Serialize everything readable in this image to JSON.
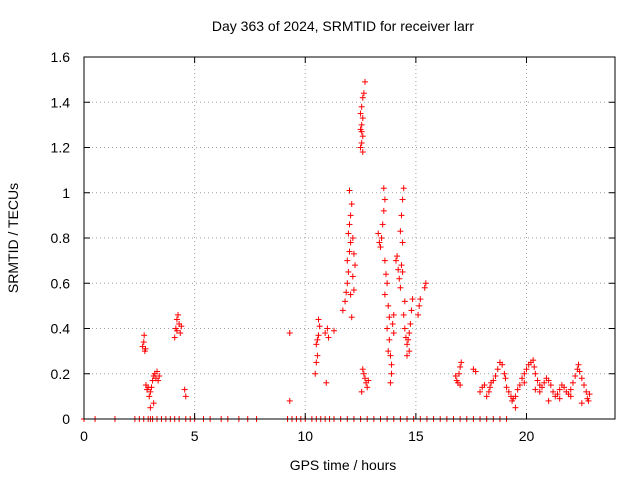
{
  "chart_data": {
    "type": "scatter",
    "title": "Day 363 of 2024, SRMTID for receiver larr",
    "xlabel": "GPS time / hours",
    "ylabel": "SRMTID / TECUs",
    "xlim": [
      0,
      24
    ],
    "ylim": [
      0,
      1.6
    ],
    "x_ticks": [
      0,
      5,
      10,
      15,
      20
    ],
    "x_tick_labels": [
      "0",
      "5",
      "10",
      "15",
      "20"
    ],
    "y_ticks": [
      0,
      0.2,
      0.4,
      0.6,
      0.8,
      1.0,
      1.2,
      1.4,
      1.6
    ],
    "y_tick_labels": [
      "0",
      "0.2",
      "0.4",
      "0.6",
      "0.8",
      "1",
      "1.2",
      "1.4",
      "1.6"
    ],
    "grid": true,
    "marker": "plus",
    "color": "#ff0000",
    "series": [
      {
        "name": "SRMTID",
        "points": [
          [
            0.0,
            0
          ],
          [
            0.5,
            0
          ],
          [
            1.4,
            0
          ],
          [
            2.3,
            0
          ],
          [
            2.5,
            0
          ],
          [
            2.7,
            0
          ],
          [
            2.9,
            0
          ],
          [
            3.0,
            0
          ],
          [
            3.1,
            0
          ],
          [
            3.3,
            0
          ],
          [
            3.5,
            0
          ],
          [
            3.7,
            0
          ],
          [
            3.9,
            0
          ],
          [
            4.1,
            0
          ],
          [
            4.3,
            0
          ],
          [
            4.6,
            0
          ],
          [
            4.8,
            0
          ],
          [
            5.0,
            0
          ],
          [
            5.4,
            0
          ],
          [
            5.7,
            0
          ],
          [
            6.2,
            0
          ],
          [
            6.5,
            0
          ],
          [
            7.0,
            0
          ],
          [
            7.4,
            0
          ],
          [
            7.8,
            0
          ],
          [
            9.2,
            0
          ],
          [
            9.4,
            0
          ],
          [
            9.6,
            0
          ],
          [
            9.8,
            0
          ],
          [
            10.0,
            0
          ],
          [
            10.3,
            0
          ],
          [
            10.5,
            0
          ],
          [
            10.7,
            0
          ],
          [
            10.9,
            0
          ],
          [
            11.1,
            0
          ],
          [
            11.3,
            0
          ],
          [
            11.6,
            0
          ],
          [
            11.9,
            0
          ],
          [
            12.2,
            0
          ],
          [
            12.5,
            0
          ],
          [
            12.8,
            0
          ],
          [
            13.1,
            0
          ],
          [
            13.4,
            0
          ],
          [
            13.7,
            0
          ],
          [
            14.0,
            0
          ],
          [
            14.3,
            0
          ],
          [
            14.6,
            0
          ],
          [
            14.9,
            0
          ],
          [
            15.2,
            0
          ],
          [
            15.5,
            0
          ],
          [
            15.8,
            0
          ],
          [
            16.1,
            0
          ],
          [
            16.4,
            0
          ],
          [
            16.7,
            0
          ],
          [
            17.0,
            0
          ],
          [
            17.3,
            0
          ],
          [
            17.6,
            0
          ],
          [
            17.9,
            0
          ],
          [
            18.2,
            0
          ],
          [
            18.5,
            0
          ],
          [
            18.8,
            0
          ],
          [
            19.1,
            0
          ],
          [
            2.65,
            0.32
          ],
          [
            2.7,
            0.34
          ],
          [
            2.72,
            0.37
          ],
          [
            2.75,
            0.3
          ],
          [
            2.78,
            0.31
          ],
          [
            2.8,
            0.15
          ],
          [
            2.85,
            0.13
          ],
          [
            2.9,
            0.14
          ],
          [
            2.95,
            0.1
          ],
          [
            3.0,
            0.12
          ],
          [
            3.05,
            0.14
          ],
          [
            3.1,
            0.17
          ],
          [
            3.15,
            0.19
          ],
          [
            3.2,
            0.2
          ],
          [
            3.25,
            0.18
          ],
          [
            3.3,
            0.21
          ],
          [
            3.35,
            0.17
          ],
          [
            3.4,
            0.19
          ],
          [
            3.15,
            0.07
          ],
          [
            3.0,
            0.05
          ],
          [
            4.1,
            0.36
          ],
          [
            4.15,
            0.4
          ],
          [
            4.2,
            0.44
          ],
          [
            4.25,
            0.46
          ],
          [
            4.3,
            0.42
          ],
          [
            4.35,
            0.38
          ],
          [
            4.4,
            0.41
          ],
          [
            4.2,
            0.39
          ],
          [
            4.55,
            0.13
          ],
          [
            4.6,
            0.1
          ],
          [
            9.3,
            0.38
          ],
          [
            9.3,
            0.08
          ],
          [
            10.45,
            0.2
          ],
          [
            10.5,
            0.25
          ],
          [
            10.55,
            0.28
          ],
          [
            10.5,
            0.33
          ],
          [
            10.55,
            0.35
          ],
          [
            10.6,
            0.37
          ],
          [
            10.65,
            0.41
          ],
          [
            10.6,
            0.44
          ],
          [
            10.9,
            0.38
          ],
          [
            11.0,
            0.4
          ],
          [
            11.05,
            0.36
          ],
          [
            11.3,
            0.39
          ],
          [
            10.95,
            0.16
          ],
          [
            11.7,
            0.48
          ],
          [
            11.8,
            0.52
          ],
          [
            11.85,
            0.56
          ],
          [
            11.9,
            0.6
          ],
          [
            11.95,
            0.65
          ],
          [
            11.9,
            0.7
          ],
          [
            12.0,
            0.74
          ],
          [
            12.05,
            0.78
          ],
          [
            11.95,
            0.82
          ],
          [
            12.0,
            0.86
          ],
          [
            12.1,
            0.95
          ],
          [
            12.0,
            1.01
          ],
          [
            12.05,
            0.9
          ],
          [
            12.15,
            0.8
          ],
          [
            12.2,
            0.73
          ],
          [
            12.25,
            0.68
          ],
          [
            12.15,
            0.63
          ],
          [
            12.2,
            0.57
          ],
          [
            12.1,
            0.45
          ],
          [
            12.05,
            0.55
          ],
          [
            12.5,
            1.2
          ],
          [
            12.55,
            1.22
          ],
          [
            12.6,
            1.25
          ],
          [
            12.5,
            1.28
          ],
          [
            12.55,
            1.3
          ],
          [
            12.6,
            1.33
          ],
          [
            12.5,
            1.35
          ],
          [
            12.55,
            1.38
          ],
          [
            12.6,
            1.42
          ],
          [
            12.65,
            1.44
          ],
          [
            12.7,
            1.49
          ],
          [
            12.6,
            1.18
          ],
          [
            12.55,
            1.27
          ],
          [
            12.6,
            0.22
          ],
          [
            12.65,
            0.2
          ],
          [
            12.7,
            0.18
          ],
          [
            12.75,
            0.16
          ],
          [
            12.8,
            0.14
          ],
          [
            12.85,
            0.17
          ],
          [
            12.55,
            0.12
          ],
          [
            13.3,
            0.82
          ],
          [
            13.35,
            0.78
          ],
          [
            13.4,
            0.76
          ],
          [
            13.45,
            0.8
          ],
          [
            13.5,
            0.86
          ],
          [
            13.55,
            0.92
          ],
          [
            13.6,
            0.97
          ],
          [
            13.55,
            1.02
          ],
          [
            13.6,
            0.7
          ],
          [
            13.65,
            0.64
          ],
          [
            13.7,
            0.6
          ],
          [
            13.6,
            0.55
          ],
          [
            13.75,
            0.5
          ],
          [
            13.8,
            0.45
          ],
          [
            13.7,
            0.4
          ],
          [
            13.8,
            0.35
          ],
          [
            13.75,
            0.3
          ],
          [
            13.85,
            0.28
          ],
          [
            13.9,
            0.24
          ],
          [
            13.95,
            0.42
          ],
          [
            14.0,
            0.46
          ],
          [
            13.9,
            0.2
          ],
          [
            13.85,
            0.16
          ],
          [
            14.0,
            0.38
          ],
          [
            14.1,
            0.7
          ],
          [
            14.15,
            0.72
          ],
          [
            14.2,
            0.66
          ],
          [
            14.25,
            0.62
          ],
          [
            14.3,
            0.58
          ],
          [
            14.35,
            0.68
          ],
          [
            14.4,
            0.78
          ],
          [
            14.35,
            0.9
          ],
          [
            14.4,
            0.97
          ],
          [
            14.45,
            1.02
          ],
          [
            14.3,
            0.83
          ],
          [
            14.4,
            0.65
          ],
          [
            14.5,
            0.52
          ],
          [
            14.45,
            0.46
          ],
          [
            14.5,
            0.4
          ],
          [
            14.55,
            0.36
          ],
          [
            14.6,
            0.33
          ],
          [
            14.65,
            0.35
          ],
          [
            14.7,
            0.38
          ],
          [
            14.75,
            0.42
          ],
          [
            14.8,
            0.48
          ],
          [
            14.85,
            0.53
          ],
          [
            14.7,
            0.3
          ],
          [
            14.6,
            0.28
          ],
          [
            15.1,
            0.46
          ],
          [
            15.15,
            0.5
          ],
          [
            15.2,
            0.53
          ],
          [
            15.4,
            0.58
          ],
          [
            15.45,
            0.6
          ],
          [
            16.8,
            0.19
          ],
          [
            16.85,
            0.17
          ],
          [
            16.9,
            0.16
          ],
          [
            16.95,
            0.2
          ],
          [
            17.0,
            0.23
          ],
          [
            17.05,
            0.25
          ],
          [
            17.0,
            0.15
          ],
          [
            17.6,
            0.22
          ],
          [
            17.7,
            0.21
          ],
          [
            17.9,
            0.12
          ],
          [
            18.0,
            0.14
          ],
          [
            18.1,
            0.15
          ],
          [
            18.2,
            0.1
          ],
          [
            18.3,
            0.12
          ],
          [
            18.35,
            0.14
          ],
          [
            18.4,
            0.16
          ],
          [
            18.5,
            0.17
          ],
          [
            18.6,
            0.19
          ],
          [
            18.7,
            0.22
          ],
          [
            18.8,
            0.25
          ],
          [
            18.9,
            0.24
          ],
          [
            19.0,
            0.2
          ],
          [
            19.05,
            0.18
          ],
          [
            19.1,
            0.14
          ],
          [
            19.2,
            0.12
          ],
          [
            19.3,
            0.1
          ],
          [
            19.35,
            0.08
          ],
          [
            19.4,
            0.09
          ],
          [
            19.5,
            0.1
          ],
          [
            19.6,
            0.13
          ],
          [
            19.7,
            0.15
          ],
          [
            19.8,
            0.18
          ],
          [
            19.9,
            0.2
          ],
          [
            20.0,
            0.22
          ],
          [
            20.1,
            0.24
          ],
          [
            20.2,
            0.25
          ],
          [
            20.3,
            0.26
          ],
          [
            20.35,
            0.23
          ],
          [
            20.4,
            0.2
          ],
          [
            20.5,
            0.17
          ],
          [
            20.6,
            0.15
          ],
          [
            20.7,
            0.14
          ],
          [
            20.8,
            0.16
          ],
          [
            20.9,
            0.18
          ],
          [
            21.0,
            0.17
          ],
          [
            21.1,
            0.15
          ],
          [
            21.2,
            0.12
          ],
          [
            21.3,
            0.1
          ],
          [
            21.4,
            0.11
          ],
          [
            21.5,
            0.13
          ],
          [
            21.6,
            0.15
          ],
          [
            21.7,
            0.14
          ],
          [
            21.8,
            0.12
          ],
          [
            21.9,
            0.11
          ],
          [
            22.0,
            0.13
          ],
          [
            22.1,
            0.16
          ],
          [
            22.2,
            0.19
          ],
          [
            22.3,
            0.22
          ],
          [
            22.35,
            0.24
          ],
          [
            22.4,
            0.21
          ],
          [
            22.5,
            0.18
          ],
          [
            22.6,
            0.15
          ],
          [
            22.7,
            0.12
          ],
          [
            22.75,
            0.09
          ],
          [
            22.8,
            0.08
          ],
          [
            22.85,
            0.11
          ],
          [
            19.5,
            0.05
          ],
          [
            20.6,
            0.12
          ],
          [
            21.0,
            0.08
          ],
          [
            21.5,
            0.09
          ],
          [
            22.0,
            0.1
          ],
          [
            20.4,
            0.13
          ],
          [
            19.9,
            0.16
          ],
          [
            22.5,
            0.07
          ]
        ]
      }
    ]
  }
}
